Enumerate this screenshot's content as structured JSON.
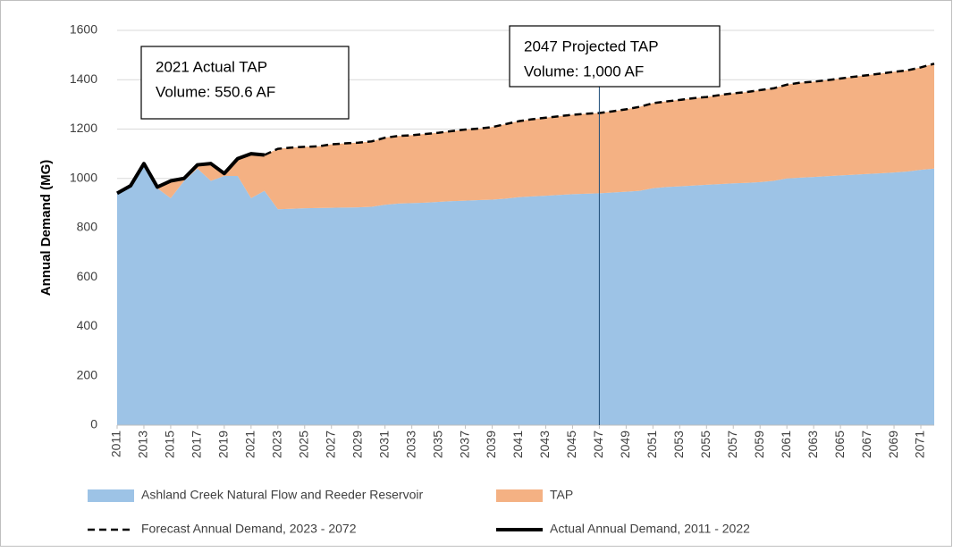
{
  "chart_data": {
    "type": "stacked-area",
    "y_label": "Annual Demand (MG)",
    "x": [
      2011,
      2012,
      2013,
      2014,
      2015,
      2016,
      2017,
      2018,
      2019,
      2020,
      2021,
      2022,
      2023,
      2024,
      2025,
      2026,
      2027,
      2028,
      2029,
      2030,
      2031,
      2032,
      2033,
      2034,
      2035,
      2036,
      2037,
      2038,
      2039,
      2040,
      2041,
      2042,
      2043,
      2044,
      2045,
      2046,
      2047,
      2048,
      2049,
      2050,
      2051,
      2052,
      2053,
      2054,
      2055,
      2056,
      2057,
      2058,
      2059,
      2060,
      2061,
      2062,
      2063,
      2064,
      2065,
      2066,
      2067,
      2068,
      2069,
      2070,
      2071,
      2072
    ],
    "xlim": [
      2011,
      2072
    ],
    "xticks": [
      2011,
      2013,
      2015,
      2017,
      2019,
      2021,
      2023,
      2025,
      2027,
      2029,
      2031,
      2033,
      2035,
      2037,
      2039,
      2041,
      2043,
      2045,
      2047,
      2049,
      2051,
      2053,
      2055,
      2057,
      2059,
      2061,
      2063,
      2065,
      2067,
      2069,
      2071
    ],
    "ylim": [
      0,
      1600
    ],
    "yticks": [
      0,
      200,
      400,
      600,
      800,
      1000,
      1200,
      1400,
      1600
    ],
    "grid": true,
    "series": [
      {
        "name": "Ashland Creek Natural Flow and Reeder Reservoir",
        "kind": "area",
        "color": "#9dc3e6",
        "values": [
          940,
          970,
          1050,
          960,
          920,
          990,
          1040,
          990,
          1010,
          1010,
          920,
          950,
          875,
          877,
          879,
          880,
          881,
          882,
          883,
          885,
          893,
          898,
          900,
          902,
          905,
          908,
          910,
          912,
          914,
          918,
          924,
          927,
          930,
          933,
          936,
          938,
          940,
          943,
          946,
          950,
          960,
          965,
          968,
          971,
          974,
          977,
          980,
          982,
          985,
          990,
          1000,
          1003,
          1006,
          1009,
          1012,
          1015,
          1018,
          1021,
          1024,
          1028,
          1035,
          1040
        ]
      },
      {
        "name": "TAP",
        "kind": "area",
        "color": "#f4b183",
        "values": [
          0,
          0,
          10,
          5,
          70,
          10,
          15,
          70,
          10,
          70,
          180,
          145,
          245,
          248,
          249,
          250,
          257,
          260,
          262,
          265,
          272,
          274,
          275,
          278,
          280,
          284,
          288,
          290,
          294,
          302,
          308,
          313,
          316,
          319,
          322,
          324,
          325,
          329,
          334,
          340,
          345,
          347,
          350,
          354,
          356,
          361,
          365,
          368,
          373,
          375,
          380,
          385,
          386,
          389,
          393,
          397,
          400,
          404,
          408,
          410,
          415,
          425
        ]
      },
      {
        "name": "Forecast Annual Demand, 2023 - 2072",
        "kind": "line",
        "dash": true,
        "color": "#000000",
        "values": [
          null,
          null,
          null,
          null,
          null,
          null,
          null,
          null,
          null,
          null,
          null,
          1095,
          1120,
          1125,
          1128,
          1130,
          1138,
          1142,
          1145,
          1150,
          1165,
          1172,
          1175,
          1180,
          1185,
          1192,
          1198,
          1202,
          1208,
          1220,
          1232,
          1240,
          1246,
          1252,
          1258,
          1262,
          1265,
          1272,
          1280,
          1290,
          1305,
          1312,
          1318,
          1325,
          1330,
          1338,
          1345,
          1350,
          1358,
          1365,
          1380,
          1388,
          1392,
          1398,
          1405,
          1412,
          1418,
          1425,
          1432,
          1438,
          1450,
          1465
        ]
      },
      {
        "name": "Actual Annual Demand, 2011 - 2022",
        "kind": "line",
        "dash": false,
        "color": "#000000",
        "values": [
          940,
          970,
          1060,
          965,
          990,
          1000,
          1055,
          1060,
          1020,
          1080,
          1100,
          1095,
          null,
          null,
          null,
          null,
          null,
          null,
          null,
          null,
          null,
          null,
          null,
          null,
          null,
          null,
          null,
          null,
          null,
          null,
          null,
          null,
          null,
          null,
          null,
          null,
          null,
          null,
          null,
          null,
          null,
          null,
          null,
          null,
          null,
          null,
          null,
          null,
          null,
          null,
          null,
          null,
          null,
          null,
          null,
          null,
          null,
          null,
          null,
          null,
          null,
          null
        ]
      }
    ],
    "annotations": [
      {
        "lines": [
          "2021 Actual TAP",
          "Volume: 550.6 AF"
        ]
      },
      {
        "lines": [
          "2047 Projected TAP",
          "Volume: 1,000 AF"
        ],
        "x": 2047
      }
    ]
  }
}
